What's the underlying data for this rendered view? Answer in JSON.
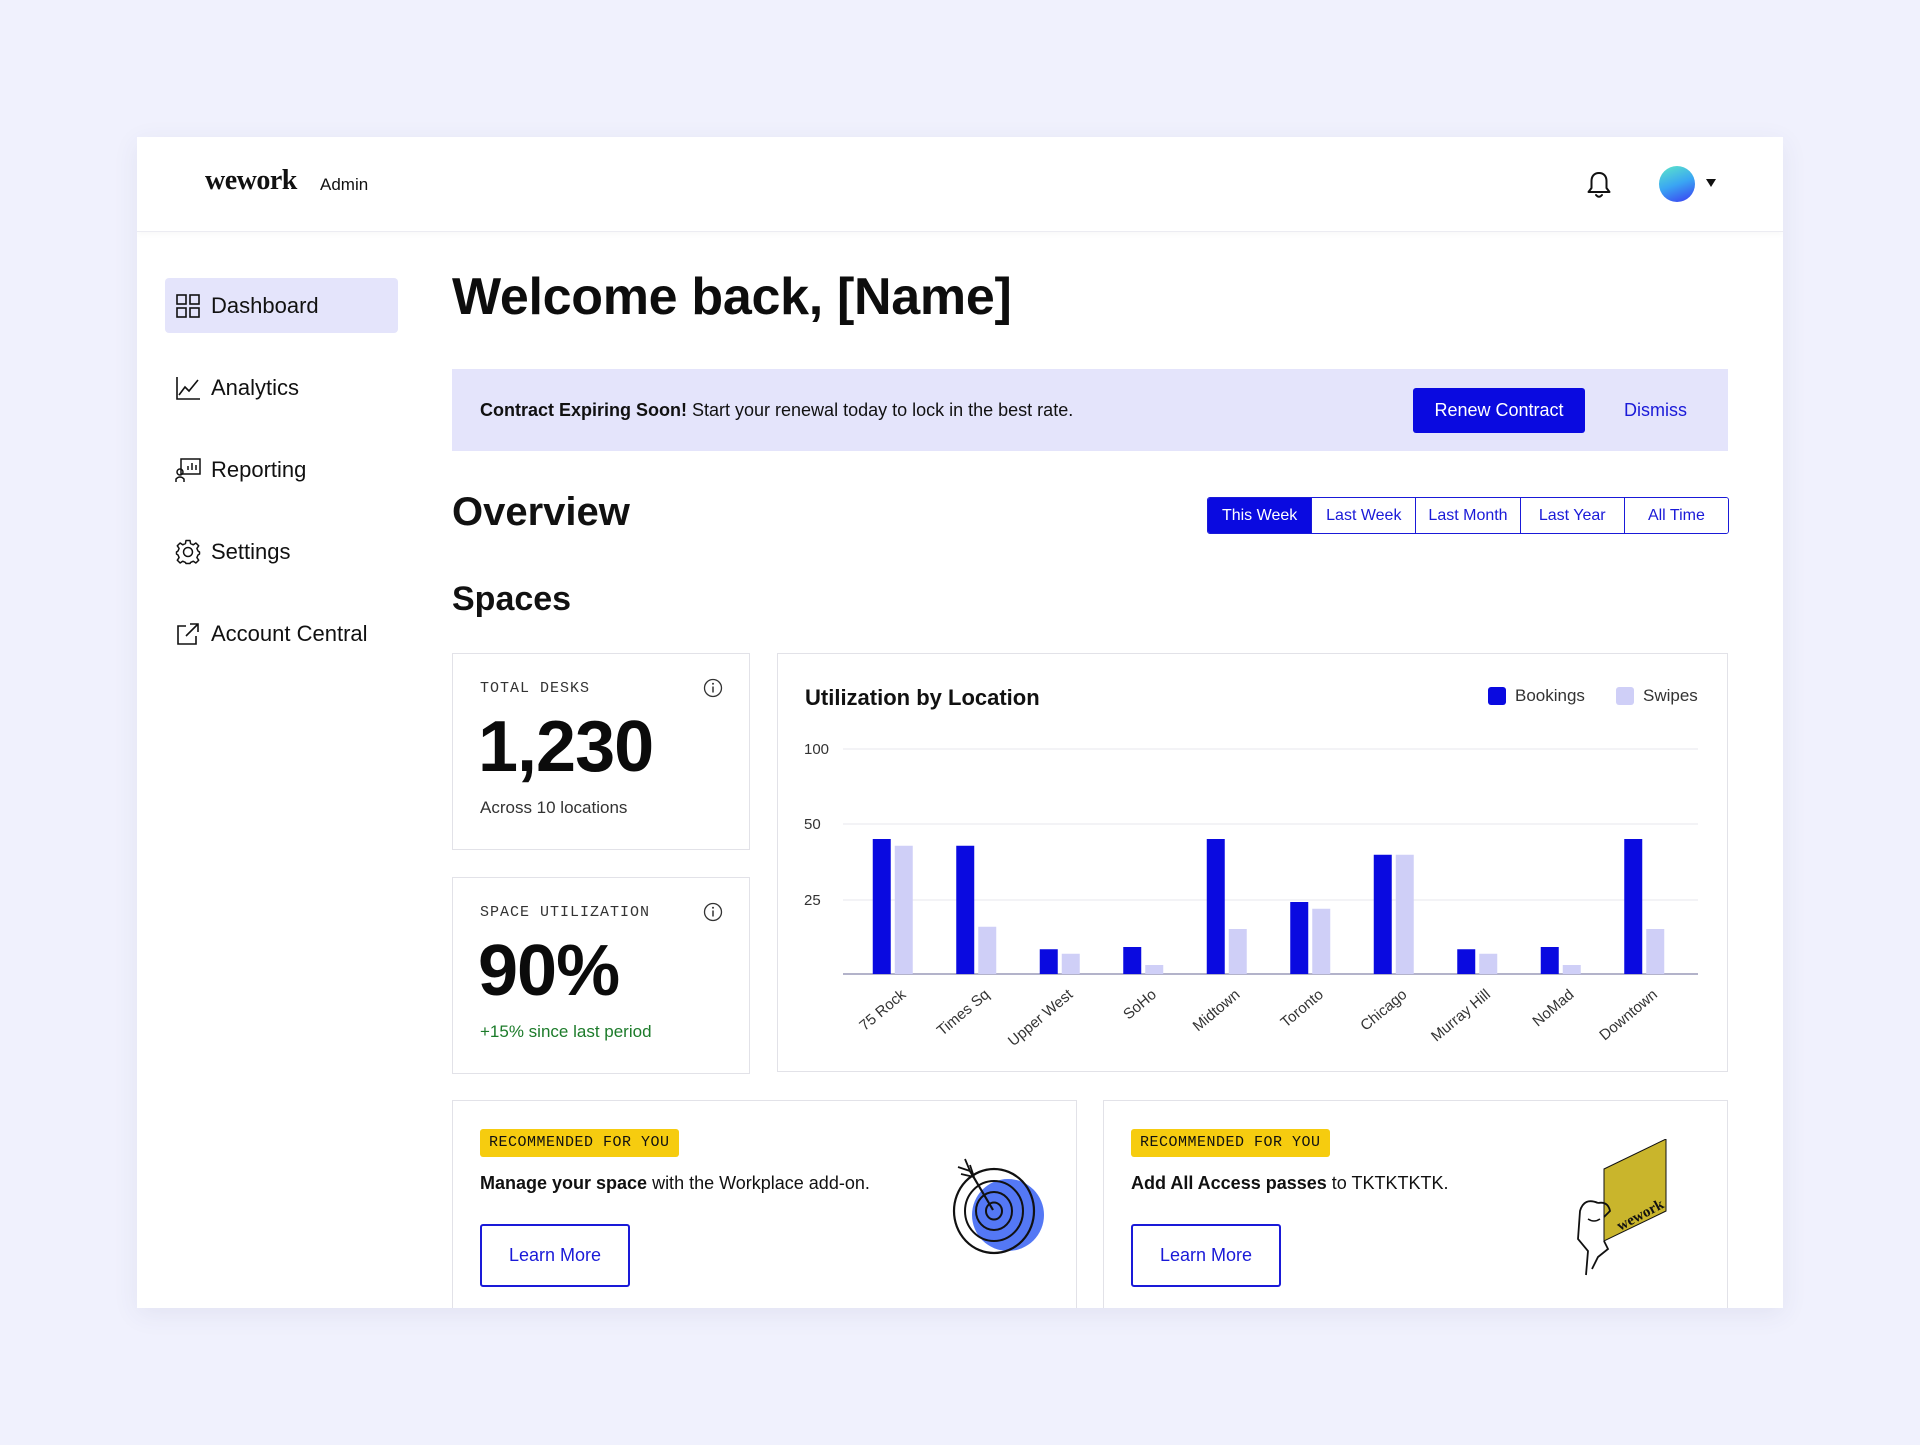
{
  "header": {
    "logo_text": "wework",
    "logo_sub": "Admin",
    "icons": [
      "bell-icon",
      "avatar",
      "chevron-down-icon"
    ]
  },
  "sidebar": {
    "items": [
      {
        "label": "Dashboard",
        "icon": "grid-icon",
        "active": true
      },
      {
        "label": "Analytics",
        "icon": "line-chart-icon",
        "active": false
      },
      {
        "label": "Reporting",
        "icon": "report-icon",
        "active": false
      },
      {
        "label": "Settings",
        "icon": "gear-icon",
        "active": false
      },
      {
        "label": "Account Central",
        "icon": "external-link-icon",
        "active": false
      }
    ]
  },
  "main": {
    "welcome": "Welcome back, [Name]",
    "banner": {
      "bold": "Contract Expiring Soon!",
      "text": " Start your renewal today to lock in the best rate.",
      "primary_button": "Renew Contract",
      "secondary_button": "Dismiss"
    },
    "overview_title": "Overview",
    "time_filters": [
      "This Week",
      "Last Week",
      "Last Month",
      "Last Year",
      "All Time"
    ],
    "time_filter_selected": "This Week",
    "spaces_title": "Spaces",
    "stats": [
      {
        "label": "TOTAL DESKS",
        "value": "1,230",
        "sub": "Across 10 locations"
      },
      {
        "label": "SPACE UTILIZATION",
        "value": "90%",
        "sub": "+15% since last period"
      }
    ],
    "recommendations": [
      {
        "badge": "RECOMMENDED FOR YOU",
        "bold": "Manage your space",
        "text": " with the Workplace add-on.",
        "button": "Learn More",
        "illustration": "target-icon"
      },
      {
        "badge": "RECOMMENDED FOR YOU",
        "bold": "Add All Access passes",
        "text": " to TKTKTKTK.",
        "button": "Learn More",
        "illustration": "access-card-icon"
      }
    ]
  },
  "colors": {
    "accent": "#0a0ae0",
    "accent_light": "#cfcff7",
    "banner_bg": "#e4e4fb",
    "badge": "#f6cc0f",
    "positive": "#1c7b2a"
  },
  "chart_data": {
    "type": "bar",
    "title": "Utilization by Location",
    "categories": [
      "75 Rock",
      "Times Sq",
      "Upper West",
      "SoHo",
      "Midtown",
      "Toronto",
      "Chicago",
      "Murray Hill",
      "NoMad",
      "Downtown"
    ],
    "series": [
      {
        "name": "Bookings",
        "color": "#0a0ae0",
        "values": [
          60,
          57,
          11,
          12,
          60,
          32,
          53,
          11,
          12,
          60
        ]
      },
      {
        "name": "Swipes",
        "color": "#cfcff7",
        "values": [
          57,
          21,
          9,
          4,
          20,
          29,
          53,
          9,
          4,
          20
        ]
      }
    ],
    "y_ticks": [
      "100",
      "50",
      "25"
    ],
    "ylim": [
      0,
      100
    ],
    "grid": true,
    "legend": "top-right"
  }
}
